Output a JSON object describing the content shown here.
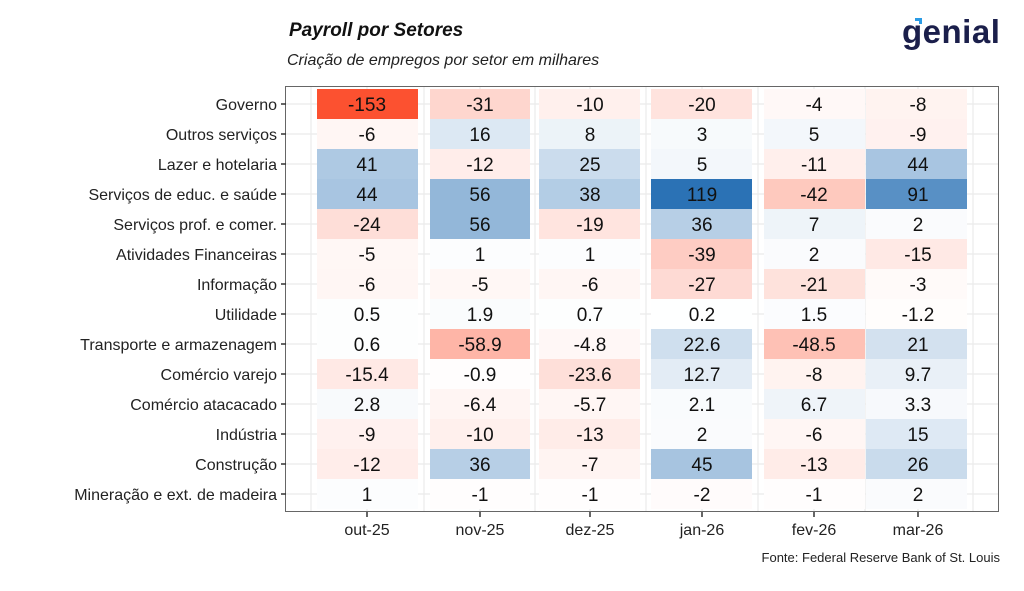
{
  "header": {
    "title": "Payroll por Setores",
    "subtitle": "Criação de empregos por setor em milhares",
    "logo_text": "genial",
    "logo_accent_color": "#2a9be5",
    "logo_color": "#1b1f4b"
  },
  "footer": {
    "source": "Fonte: Federal Reserve Bank of St. Louis"
  },
  "chart_data": {
    "type": "heatmap",
    "title": "Payroll por Setores",
    "subtitle": "Criação de empregos por setor em milhares",
    "xlabel": "",
    "ylabel": "",
    "x": [
      "out-25",
      "nov-25",
      "dez-25",
      "jan-26",
      "fev-26",
      "mar-26"
    ],
    "y": [
      "Governo",
      "Outros serviços",
      "Lazer e hotelaria",
      "Serviços de educ. e saúde",
      "Serviços prof. e comer.",
      "Atividades Financeiras",
      "Informação",
      "Utilidade",
      "Transporte e armazenagem",
      "Comércio varejo",
      "Comércio atacacado",
      "Indústria",
      "Construção",
      "Mineração e ext. de madeira"
    ],
    "values": [
      [
        -153,
        -31,
        -10,
        -20,
        -4,
        -8
      ],
      [
        -6,
        16,
        8,
        3,
        5,
        -9
      ],
      [
        41,
        -12,
        25,
        5,
        -11,
        44
      ],
      [
        44,
        56,
        38,
        119,
        -42,
        91
      ],
      [
        -24,
        56,
        -19,
        36,
        7,
        2
      ],
      [
        -5,
        1,
        1,
        -39,
        2,
        -15
      ],
      [
        -6,
        -5,
        -6,
        -27,
        -21,
        -3
      ],
      [
        0.5,
        1.9,
        0.7,
        0.2,
        1.5,
        -1.2
      ],
      [
        0.6,
        -58.9,
        -4.8,
        22.6,
        -48.5,
        21
      ],
      [
        -15.4,
        -0.9,
        -23.6,
        12.7,
        -8,
        9.7
      ],
      [
        2.8,
        -6.4,
        -5.7,
        2.1,
        6.7,
        3.3
      ],
      [
        -9,
        -10,
        -13,
        2,
        -6,
        15
      ],
      [
        -12,
        36,
        -7,
        45,
        -13,
        26
      ],
      [
        1,
        -1,
        -1,
        -2,
        -1,
        2
      ]
    ],
    "labels": [
      [
        "-153",
        "-31",
        "-10",
        "-20",
        "-4",
        "-8"
      ],
      [
        "-6",
        "16",
        "8",
        "3",
        "5",
        "-9"
      ],
      [
        "41",
        "-12",
        "25",
        "5",
        "-11",
        "44"
      ],
      [
        "44",
        "56",
        "38",
        "119",
        "-42",
        "91"
      ],
      [
        "-24",
        "56",
        "-19",
        "36",
        "7",
        "2"
      ],
      [
        "-5",
        "1",
        "1",
        "-39",
        "2",
        "-15"
      ],
      [
        "-6",
        "-5",
        "-6",
        "-27",
        "-21",
        "-3"
      ],
      [
        "0.5",
        "1.9",
        "0.7",
        "0.2",
        "1.5",
        "-1.2"
      ],
      [
        "0.6",
        "-58.9",
        "-4.8",
        "22.6",
        "-48.5",
        "21"
      ],
      [
        "-15.4",
        "-0.9",
        "-23.6",
        "12.7",
        "-8",
        "9.7"
      ],
      [
        "2.8",
        "-6.4",
        "-5.7",
        "2.1",
        "6.7",
        "3.3"
      ],
      [
        "-9",
        "-10",
        "-13",
        "2",
        "-6",
        "15"
      ],
      [
        "-12",
        "36",
        "-7",
        "45",
        "-13",
        "26"
      ],
      [
        "1",
        "-1",
        "-1",
        "-2",
        "-1",
        "2"
      ]
    ],
    "color_scale": {
      "negative_color": "#fc5130",
      "neutral_color": "#ffffff",
      "positive_color": "#2b72b5",
      "negative_limit": -153,
      "positive_limit": 119
    },
    "grid": true,
    "legend": "none"
  }
}
